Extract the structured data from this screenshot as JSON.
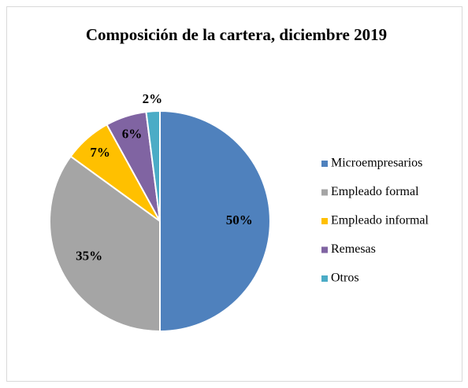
{
  "chart_data": {
    "type": "pie",
    "title": "Composición de la cartera, diciembre 2019",
    "categories": [
      "Microempresarios",
      "Empleado formal",
      "Empleado informal",
      "Remesas",
      "Otros"
    ],
    "values": [
      50,
      35,
      7,
      6,
      2
    ],
    "value_labels": [
      "50%",
      "35%",
      "7%",
      "6%",
      "2%"
    ],
    "colors": [
      "#4f81bd",
      "#a5a5a5",
      "#ffc000",
      "#8064a2",
      "#4bacc6"
    ],
    "legend": "right"
  }
}
